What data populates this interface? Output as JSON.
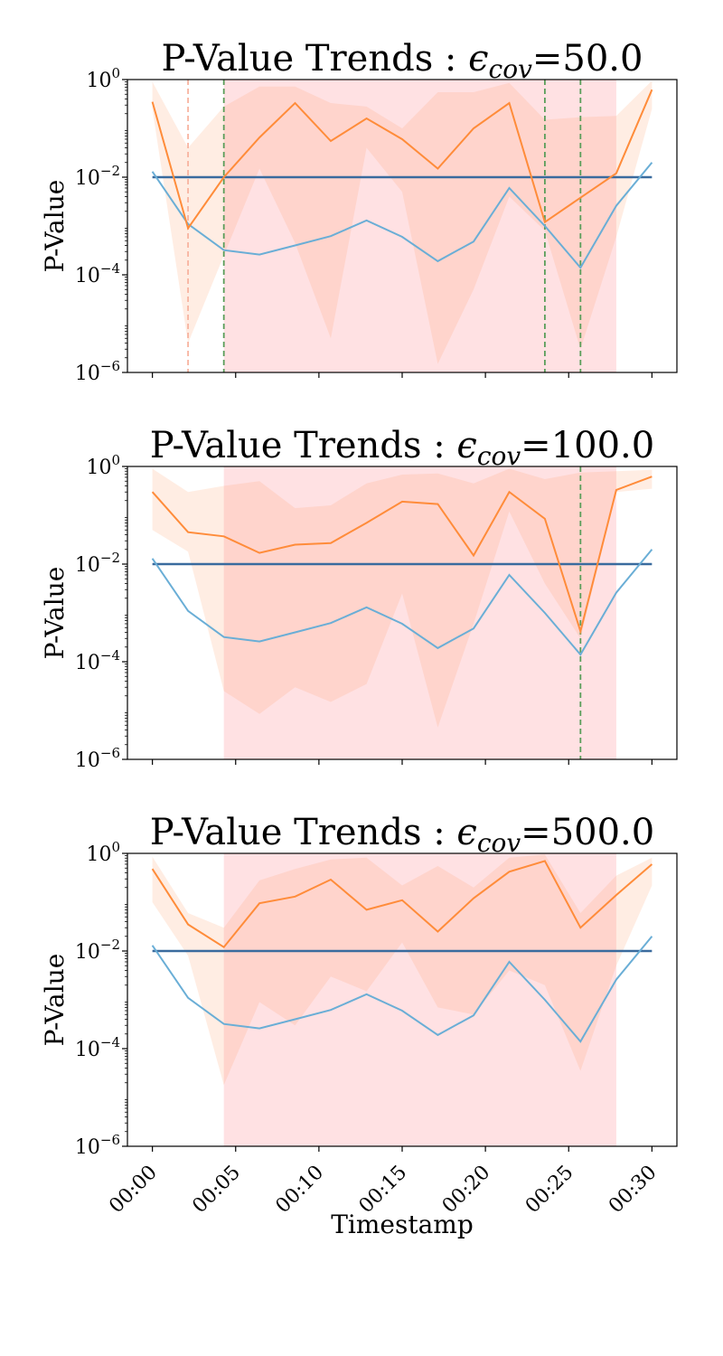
{
  "chart_data": {
    "type": "line",
    "x_tick_labels": [
      "00:00",
      "00:05",
      "00:10",
      "00:15",
      "00:20",
      "00:25",
      "00:30"
    ],
    "x_tick_minutes": [
      0,
      5,
      10,
      15,
      20,
      25,
      30
    ],
    "xlim_minutes": [
      -1.5,
      31.5
    ],
    "xlabel": "Timestamp",
    "ylabel": "P-Value",
    "yscale": "log",
    "ylim": [
      1e-06,
      1
    ],
    "y_tick_labels": [
      {
        "base": "10",
        "exp": "0",
        "value": 1
      },
      {
        "base": "10",
        "exp": "−2",
        "value": 0.01
      },
      {
        "base": "10",
        "exp": "−4",
        "value": 0.0001
      },
      {
        "base": "10",
        "exp": "−6",
        "value": 1e-06
      }
    ],
    "threshold": 0.01,
    "x_minutes": [
      0,
      2.14,
      4.29,
      6.43,
      8.57,
      10.71,
      12.86,
      15,
      17.14,
      19.29,
      21.43,
      23.57,
      25.71,
      27.86,
      30
    ],
    "baseline_series": {
      "name": "baseline",
      "color": "#6aaed6",
      "values": [
        0.013,
        0.0011,
        0.00032,
        0.00026,
        0.0004,
        0.00062,
        0.0013,
        0.0006,
        0.00019,
        0.00048,
        0.006,
        0.001,
        0.00014,
        0.0026,
        0.02
      ]
    },
    "panels": [
      {
        "title_prefix": "P-Value Trends : ",
        "epsilon_symbol": "ϵ",
        "epsilon_sub": "cov",
        "epsilon_value": "=50.0",
        "series": {
          "name": "p-value",
          "color": "#ff8c3a",
          "values": [
            0.35,
            0.0009,
            0.01,
            0.065,
            0.33,
            0.055,
            0.16,
            0.06,
            0.015,
            0.1,
            0.33,
            0.0012,
            0.0038,
            0.012,
            0.62
          ],
          "upper": [
            0.9,
            0.04,
            0.28,
            0.72,
            0.72,
            0.33,
            0.28,
            0.1,
            0.55,
            0.55,
            0.85,
            0.15,
            0.17,
            0.18,
            0.95
          ],
          "lower": [
            0.25,
            4e-06,
            0.00025,
            0.015,
            0.00045,
            5e-06,
            0.04,
            0.005,
            1.5e-06,
            5e-05,
            0.004,
            0.0008,
            3e-06,
            0.0006,
            0.25
          ]
        },
        "shaded_region_minutes": [
          4.29,
          27.86
        ],
        "vlines": [
          {
            "x_minutes": 2.14,
            "color": "#f8b4a0"
          },
          {
            "x_minutes": 4.29,
            "color": "#5a9e5a"
          },
          {
            "x_minutes": 23.57,
            "color": "#5a9e5a"
          },
          {
            "x_minutes": 25.71,
            "color": "#5a9e5a"
          }
        ]
      },
      {
        "title_prefix": "P-Value Trends : ",
        "epsilon_symbol": "ϵ",
        "epsilon_sub": "cov",
        "epsilon_value": "=100.0",
        "series": {
          "name": "p-value",
          "color": "#ff8c3a",
          "values": [
            0.3,
            0.045,
            0.037,
            0.017,
            0.025,
            0.027,
            0.07,
            0.19,
            0.17,
            0.015,
            0.3,
            0.085,
            0.00042,
            0.33,
            0.62
          ],
          "upper": [
            0.9,
            0.3,
            0.4,
            0.5,
            0.14,
            0.16,
            0.45,
            0.68,
            0.72,
            0.45,
            0.9,
            0.55,
            0.75,
            0.8,
            0.85
          ],
          "lower": [
            0.05,
            0.018,
            2.5e-05,
            8.5e-06,
            3e-05,
            1.5e-05,
            3.5e-05,
            0.0025,
            4.5e-06,
            0.0006,
            0.12,
            0.004,
            0.0003,
            0.3,
            0.35
          ]
        },
        "shaded_region_minutes": [
          4.29,
          27.86
        ],
        "vlines": [
          {
            "x_minutes": 25.71,
            "color": "#5a9e5a"
          }
        ]
      },
      {
        "title_prefix": "P-Value Trends : ",
        "epsilon_symbol": "ϵ",
        "epsilon_sub": "cov",
        "epsilon_value": "=500.0",
        "series": {
          "name": "p-value",
          "color": "#ff8c3a",
          "values": [
            0.48,
            0.035,
            0.012,
            0.095,
            0.13,
            0.29,
            0.07,
            0.11,
            0.025,
            0.12,
            0.42,
            0.7,
            0.03,
            0.14,
            0.6
          ],
          "upper": [
            0.85,
            0.06,
            0.03,
            0.28,
            0.48,
            0.75,
            0.82,
            0.22,
            0.55,
            0.2,
            0.82,
            0.95,
            0.06,
            0.35,
            0.82
          ],
          "lower": [
            0.1,
            0.008,
            1.8e-05,
            0.0009,
            0.0003,
            0.003,
            0.0015,
            0.015,
            0.0007,
            0.0005,
            0.004,
            0.002,
            3.5e-05,
            0.005,
            0.22
          ]
        },
        "shaded_region_minutes": [
          4.29,
          27.86
        ],
        "vlines": []
      }
    ]
  }
}
